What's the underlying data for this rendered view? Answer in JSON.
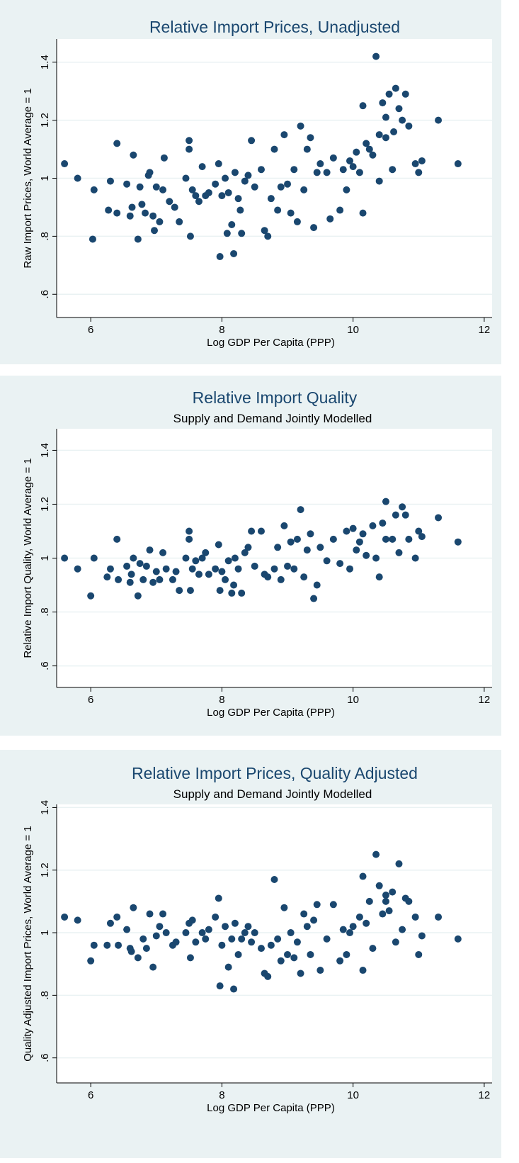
{
  "chart_data": [
    {
      "type": "scatter",
      "title": "Relative Import Prices, Unadjusted",
      "xlabel": "Log GDP Per Capita (PPP)",
      "ylabel": "Raw Import Prices, World Average = 1",
      "color": "#1a476f",
      "grid": true,
      "xlim": [
        5.48,
        12.12
      ],
      "ylim": [
        0.52,
        1.48
      ],
      "xticks": [
        6,
        8,
        10,
        12
      ],
      "yticks": [
        {
          "value": 0.6,
          "label": ".6"
        },
        {
          "value": 0.8,
          "label": ".8"
        },
        1,
        1.2,
        1.4
      ],
      "x": [
        5.6,
        5.8,
        6.05,
        6.03,
        6.3,
        6.27,
        6.4,
        6.4,
        6.55,
        6.6,
        6.63,
        6.65,
        6.72,
        6.75,
        6.78,
        6.83,
        6.88,
        6.9,
        6.95,
        6.97,
        7.0,
        7.05,
        7.1,
        7.12,
        7.2,
        7.28,
        7.35,
        7.45,
        7.5,
        7.5,
        7.52,
        7.55,
        7.6,
        7.65,
        7.7,
        7.75,
        7.8,
        7.9,
        7.95,
        7.97,
        8.0,
        8.05,
        8.08,
        8.1,
        8.15,
        8.18,
        8.2,
        8.25,
        8.28,
        8.3,
        8.35,
        8.4,
        8.45,
        8.5,
        8.6,
        8.65,
        8.7,
        8.75,
        8.8,
        8.85,
        8.9,
        8.95,
        9.0,
        9.05,
        9.1,
        9.15,
        9.2,
        9.25,
        9.3,
        9.35,
        9.4,
        9.45,
        9.5,
        9.6,
        9.65,
        9.7,
        9.8,
        9.85,
        9.9,
        9.95,
        10.0,
        10.05,
        10.1,
        10.15,
        10.15,
        10.2,
        10.25,
        10.3,
        10.35,
        10.4,
        10.4,
        10.45,
        10.5,
        10.5,
        10.55,
        10.6,
        10.62,
        10.65,
        10.7,
        10.75,
        10.8,
        10.85,
        10.95,
        11.0,
        11.05,
        11.3,
        11.6
      ],
      "values": [
        1.05,
        1.0,
        0.96,
        0.79,
        0.99,
        0.89,
        1.12,
        0.88,
        0.98,
        0.87,
        0.9,
        1.08,
        0.79,
        0.97,
        0.91,
        0.88,
        1.01,
        1.02,
        0.87,
        0.82,
        0.97,
        0.85,
        0.96,
        1.07,
        0.92,
        0.9,
        0.85,
        1.0,
        1.13,
        1.1,
        0.8,
        0.96,
        0.94,
        0.92,
        1.04,
        0.94,
        0.95,
        0.98,
        1.05,
        0.73,
        0.94,
        1.0,
        0.81,
        0.95,
        0.84,
        0.74,
        1.02,
        0.93,
        0.89,
        0.81,
        0.99,
        1.01,
        1.13,
        0.97,
        1.03,
        0.82,
        0.8,
        0.93,
        1.1,
        0.89,
        0.97,
        1.15,
        0.98,
        0.88,
        1.03,
        0.85,
        1.18,
        0.96,
        1.1,
        1.14,
        0.83,
        1.02,
        1.05,
        1.02,
        0.86,
        1.07,
        0.89,
        1.03,
        0.96,
        1.06,
        1.04,
        1.09,
        1.02,
        0.88,
        1.25,
        1.12,
        1.1,
        1.08,
        1.42,
        0.99,
        1.15,
        1.26,
        1.21,
        1.14,
        1.29,
        1.03,
        1.16,
        1.31,
        1.24,
        1.2,
        1.29,
        1.18,
        1.05,
        1.02,
        1.06,
        1.2,
        1.05
      ]
    },
    {
      "type": "scatter",
      "title": "Relative Import Quality",
      "subtitle": "Supply and Demand Jointly Modelled",
      "xlabel": "Log GDP Per Capita (PPP)",
      "ylabel": "Relative Import Quality, World Average = 1",
      "color": "#1a476f",
      "grid": true,
      "xlim": [
        5.48,
        12.12
      ],
      "ylim": [
        0.52,
        1.48
      ],
      "xticks": [
        6,
        8,
        10,
        12
      ],
      "yticks": [
        {
          "value": 0.6,
          "label": ".6"
        },
        {
          "value": 0.8,
          "label": ".8"
        },
        1,
        1.2,
        1.4
      ],
      "x": [
        5.6,
        5.8,
        6.0,
        6.05,
        6.25,
        6.3,
        6.4,
        6.42,
        6.55,
        6.6,
        6.62,
        6.65,
        6.72,
        6.75,
        6.8,
        6.85,
        6.9,
        6.95,
        7.0,
        7.05,
        7.1,
        7.15,
        7.25,
        7.3,
        7.35,
        7.45,
        7.5,
        7.5,
        7.52,
        7.55,
        7.6,
        7.65,
        7.7,
        7.75,
        7.8,
        7.9,
        7.95,
        7.97,
        8.0,
        8.05,
        8.1,
        8.15,
        8.18,
        8.2,
        8.25,
        8.3,
        8.35,
        8.4,
        8.45,
        8.5,
        8.6,
        8.65,
        8.7,
        8.8,
        8.85,
        8.9,
        8.95,
        9.0,
        9.05,
        9.1,
        9.15,
        9.2,
        9.25,
        9.3,
        9.35,
        9.4,
        9.45,
        9.5,
        9.6,
        9.7,
        9.8,
        9.9,
        9.95,
        10.0,
        10.05,
        10.1,
        10.15,
        10.2,
        10.3,
        10.35,
        10.4,
        10.45,
        10.5,
        10.5,
        10.6,
        10.65,
        10.7,
        10.75,
        10.8,
        10.85,
        10.95,
        11.0,
        11.05,
        11.3,
        11.6
      ],
      "values": [
        1.0,
        0.96,
        0.86,
        1.0,
        0.93,
        0.96,
        1.07,
        0.92,
        0.97,
        0.91,
        0.94,
        1.0,
        0.86,
        0.98,
        0.92,
        0.97,
        1.03,
        0.91,
        0.95,
        0.92,
        1.02,
        0.96,
        0.92,
        0.95,
        0.88,
        1.0,
        1.1,
        1.07,
        0.88,
        0.96,
        0.99,
        0.94,
        1.0,
        1.02,
        0.94,
        0.96,
        1.05,
        0.88,
        0.95,
        0.92,
        0.99,
        0.87,
        0.9,
        1.0,
        0.96,
        0.87,
        1.02,
        1.04,
        1.1,
        0.97,
        1.1,
        0.94,
        0.93,
        0.96,
        1.04,
        0.92,
        1.12,
        0.97,
        1.06,
        0.96,
        1.07,
        1.18,
        0.93,
        1.03,
        1.09,
        0.85,
        0.9,
        1.04,
        0.99,
        1.07,
        0.98,
        1.1,
        0.96,
        1.11,
        1.03,
        1.06,
        1.09,
        1.01,
        1.12,
        1.0,
        0.93,
        1.13,
        1.07,
        1.21,
        1.07,
        1.16,
        1.02,
        1.19,
        1.16,
        1.07,
        1.0,
        1.1,
        1.08,
        1.15,
        1.06
      ]
    },
    {
      "type": "scatter",
      "title": "Relative Import Prices, Quality Adjusted",
      "subtitle": "Supply and Demand Jointly Modelled",
      "xlabel": "Log GDP Per Capita (PPP)",
      "ylabel": "Quality Adjusted Import Prices, World Average = 1",
      "color": "#1a476f",
      "grid": true,
      "xlim": [
        5.48,
        12.12
      ],
      "ylim": [
        0.52,
        1.41
      ],
      "xticks": [
        6,
        8,
        10,
        12
      ],
      "yticks": [
        {
          "value": 0.6,
          "label": ".6"
        },
        {
          "value": 0.8,
          "label": ".8"
        },
        1,
        1.2,
        1.4
      ],
      "x": [
        5.6,
        5.8,
        6.0,
        6.05,
        6.25,
        6.3,
        6.4,
        6.42,
        6.55,
        6.6,
        6.62,
        6.65,
        6.72,
        6.8,
        6.85,
        6.9,
        6.95,
        7.0,
        7.05,
        7.1,
        7.15,
        7.25,
        7.3,
        7.45,
        7.5,
        7.52,
        7.55,
        7.6,
        7.7,
        7.75,
        7.8,
        7.9,
        7.95,
        7.97,
        8.0,
        8.05,
        8.1,
        8.15,
        8.18,
        8.2,
        8.25,
        8.3,
        8.35,
        8.4,
        8.45,
        8.5,
        8.6,
        8.65,
        8.7,
        8.75,
        8.8,
        8.85,
        8.9,
        8.95,
        9.0,
        9.05,
        9.1,
        9.15,
        9.2,
        9.25,
        9.3,
        9.35,
        9.4,
        9.45,
        9.5,
        9.6,
        9.7,
        9.8,
        9.85,
        9.9,
        9.95,
        10.0,
        10.1,
        10.15,
        10.15,
        10.2,
        10.25,
        10.3,
        10.35,
        10.4,
        10.45,
        10.5,
        10.5,
        10.55,
        10.6,
        10.65,
        10.7,
        10.75,
        10.8,
        10.85,
        10.95,
        11.0,
        11.05,
        11.3,
        11.6
      ],
      "values": [
        1.05,
        1.04,
        0.91,
        0.96,
        0.96,
        1.03,
        1.05,
        0.96,
        1.01,
        0.95,
        0.94,
        1.08,
        0.92,
        0.98,
        0.95,
        1.06,
        0.89,
        0.99,
        1.02,
        1.06,
        1.0,
        0.96,
        0.97,
        1.0,
        1.03,
        0.92,
        1.04,
        0.97,
        1.0,
        0.98,
        1.01,
        1.05,
        1.11,
        0.83,
        0.96,
        1.02,
        0.89,
        0.98,
        0.82,
        1.03,
        0.93,
        0.98,
        1.0,
        1.02,
        0.97,
        1.0,
        0.95,
        0.87,
        0.86,
        0.96,
        1.17,
        0.98,
        0.91,
        1.08,
        0.93,
        1.0,
        0.92,
        0.97,
        0.87,
        1.06,
        1.02,
        0.93,
        1.04,
        1.09,
        0.88,
        0.98,
        1.09,
        0.91,
        1.01,
        0.93,
        1.0,
        1.02,
        1.05,
        0.88,
        1.18,
        1.03,
        1.1,
        0.95,
        1.25,
        1.15,
        1.06,
        1.12,
        1.1,
        1.07,
        1.13,
        0.97,
        1.22,
        1.01,
        1.11,
        1.1,
        1.05,
        0.93,
        0.99,
        1.05,
        0.98
      ]
    }
  ]
}
